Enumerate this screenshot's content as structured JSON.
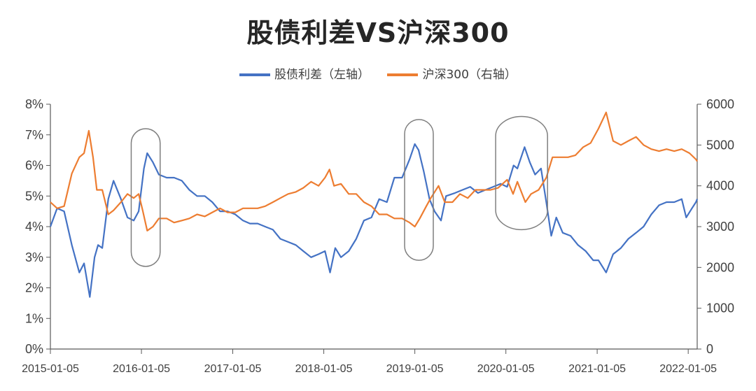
{
  "chart_data": {
    "type": "line",
    "title": "股债利差VS沪深300",
    "left_axis": {
      "ylim": [
        0,
        8
      ],
      "ticks": [
        "0%",
        "1%",
        "2%",
        "3%",
        "4%",
        "5%",
        "6%",
        "7%",
        "8%"
      ]
    },
    "right_axis": {
      "ylim": [
        0,
        6000
      ],
      "ticks": [
        "0",
        "1000",
        "2000",
        "3000",
        "4000",
        "5000",
        "6000"
      ]
    },
    "x_ticks": [
      "2015-01-05",
      "2016-01-05",
      "2017-01-05",
      "2018-01-05",
      "2019-01-05",
      "2020-01-05",
      "2021-01-05",
      "2022-01-05"
    ],
    "x_range": [
      "2015-01-05",
      "2022-02-10"
    ],
    "grid": false,
    "legend_position": "top-center",
    "series": [
      {
        "name": "股债利差（左轴）",
        "axis": "left",
        "color": "#4472C4",
        "points": [
          [
            "2015-01-05",
            4.0
          ],
          [
            "2015-02-01",
            4.6
          ],
          [
            "2015-03-01",
            4.5
          ],
          [
            "2015-04-01",
            3.4
          ],
          [
            "2015-05-01",
            2.5
          ],
          [
            "2015-05-20",
            2.8
          ],
          [
            "2015-06-12",
            1.7
          ],
          [
            "2015-07-01",
            3.0
          ],
          [
            "2015-07-15",
            3.4
          ],
          [
            "2015-08-01",
            3.3
          ],
          [
            "2015-08-25",
            4.9
          ],
          [
            "2015-09-15",
            5.5
          ],
          [
            "2015-10-15",
            4.9
          ],
          [
            "2015-11-10",
            4.3
          ],
          [
            "2015-12-05",
            4.2
          ],
          [
            "2015-12-25",
            4.5
          ],
          [
            "2016-01-15",
            5.9
          ],
          [
            "2016-01-28",
            6.4
          ],
          [
            "2016-02-20",
            6.1
          ],
          [
            "2016-03-15",
            5.7
          ],
          [
            "2016-04-15",
            5.6
          ],
          [
            "2016-05-15",
            5.6
          ],
          [
            "2016-06-15",
            5.5
          ],
          [
            "2016-07-15",
            5.2
          ],
          [
            "2016-08-15",
            5.0
          ],
          [
            "2016-09-15",
            5.0
          ],
          [
            "2016-10-15",
            4.8
          ],
          [
            "2016-11-15",
            4.5
          ],
          [
            "2016-12-15",
            4.5
          ],
          [
            "2017-01-15",
            4.4
          ],
          [
            "2017-02-15",
            4.2
          ],
          [
            "2017-03-15",
            4.1
          ],
          [
            "2017-04-15",
            4.1
          ],
          [
            "2017-05-15",
            4.0
          ],
          [
            "2017-06-15",
            3.9
          ],
          [
            "2017-07-15",
            3.6
          ],
          [
            "2017-08-15",
            3.5
          ],
          [
            "2017-09-15",
            3.4
          ],
          [
            "2017-10-15",
            3.2
          ],
          [
            "2017-11-15",
            3.0
          ],
          [
            "2017-12-15",
            3.1
          ],
          [
            "2018-01-10",
            3.2
          ],
          [
            "2018-01-30",
            2.5
          ],
          [
            "2018-02-20",
            3.3
          ],
          [
            "2018-03-15",
            3.0
          ],
          [
            "2018-04-15",
            3.2
          ],
          [
            "2018-05-15",
            3.6
          ],
          [
            "2018-06-15",
            4.2
          ],
          [
            "2018-07-15",
            4.3
          ],
          [
            "2018-08-15",
            4.9
          ],
          [
            "2018-09-15",
            4.8
          ],
          [
            "2018-10-15",
            5.6
          ],
          [
            "2018-11-15",
            5.6
          ],
          [
            "2018-12-15",
            6.2
          ],
          [
            "2019-01-05",
            6.7
          ],
          [
            "2019-01-20",
            6.5
          ],
          [
            "2019-02-10",
            5.8
          ],
          [
            "2019-03-05",
            4.9
          ],
          [
            "2019-03-25",
            4.5
          ],
          [
            "2019-04-20",
            4.2
          ],
          [
            "2019-05-10",
            5.0
          ],
          [
            "2019-06-15",
            5.1
          ],
          [
            "2019-07-15",
            5.2
          ],
          [
            "2019-08-15",
            5.3
          ],
          [
            "2019-09-15",
            5.1
          ],
          [
            "2019-10-15",
            5.2
          ],
          [
            "2019-11-15",
            5.3
          ],
          [
            "2019-12-15",
            5.4
          ],
          [
            "2020-01-10",
            5.3
          ],
          [
            "2020-02-05",
            6.0
          ],
          [
            "2020-02-20",
            5.9
          ],
          [
            "2020-03-20",
            6.6
          ],
          [
            "2020-04-10",
            6.1
          ],
          [
            "2020-05-01",
            5.7
          ],
          [
            "2020-05-25",
            5.9
          ],
          [
            "2020-06-15",
            4.8
          ],
          [
            "2020-07-05",
            3.7
          ],
          [
            "2020-07-25",
            4.3
          ],
          [
            "2020-08-20",
            3.8
          ],
          [
            "2020-09-20",
            3.7
          ],
          [
            "2020-10-20",
            3.4
          ],
          [
            "2020-11-20",
            3.2
          ],
          [
            "2020-12-20",
            2.9
          ],
          [
            "2021-01-10",
            2.9
          ],
          [
            "2021-02-10",
            2.5
          ],
          [
            "2021-03-10",
            3.1
          ],
          [
            "2021-04-10",
            3.3
          ],
          [
            "2021-05-10",
            3.6
          ],
          [
            "2021-06-10",
            3.8
          ],
          [
            "2021-07-10",
            4.0
          ],
          [
            "2021-08-10",
            4.4
          ],
          [
            "2021-09-10",
            4.7
          ],
          [
            "2021-10-10",
            4.8
          ],
          [
            "2021-11-10",
            4.8
          ],
          [
            "2021-12-10",
            4.9
          ],
          [
            "2021-12-28",
            4.3
          ],
          [
            "2022-01-20",
            4.6
          ],
          [
            "2022-02-05",
            4.8
          ],
          [
            "2022-02-10",
            4.9
          ]
        ]
      },
      {
        "name": "沪深300（右轴）",
        "axis": "right",
        "color": "#ED7D31",
        "points": [
          [
            "2015-01-05",
            3600
          ],
          [
            "2015-02-01",
            3450
          ],
          [
            "2015-03-01",
            3500
          ],
          [
            "2015-04-01",
            4300
          ],
          [
            "2015-05-01",
            4700
          ],
          [
            "2015-05-20",
            4800
          ],
          [
            "2015-06-08",
            5350
          ],
          [
            "2015-06-25",
            4700
          ],
          [
            "2015-07-10",
            3900
          ],
          [
            "2015-08-01",
            3900
          ],
          [
            "2015-08-25",
            3300
          ],
          [
            "2015-09-15",
            3400
          ],
          [
            "2015-10-15",
            3600
          ],
          [
            "2015-11-10",
            3800
          ],
          [
            "2015-12-05",
            3700
          ],
          [
            "2015-12-25",
            3800
          ],
          [
            "2016-01-10",
            3400
          ],
          [
            "2016-01-28",
            2900
          ],
          [
            "2016-02-20",
            3000
          ],
          [
            "2016-03-15",
            3200
          ],
          [
            "2016-04-15",
            3200
          ],
          [
            "2016-05-15",
            3100
          ],
          [
            "2016-06-15",
            3150
          ],
          [
            "2016-07-15",
            3200
          ],
          [
            "2016-08-15",
            3300
          ],
          [
            "2016-09-15",
            3250
          ],
          [
            "2016-10-15",
            3350
          ],
          [
            "2016-11-15",
            3450
          ],
          [
            "2016-12-15",
            3350
          ],
          [
            "2017-01-15",
            3350
          ],
          [
            "2017-02-15",
            3450
          ],
          [
            "2017-03-15",
            3450
          ],
          [
            "2017-04-15",
            3450
          ],
          [
            "2017-05-15",
            3500
          ],
          [
            "2017-06-15",
            3600
          ],
          [
            "2017-07-15",
            3700
          ],
          [
            "2017-08-15",
            3800
          ],
          [
            "2017-09-15",
            3850
          ],
          [
            "2017-10-15",
            3950
          ],
          [
            "2017-11-15",
            4100
          ],
          [
            "2017-12-15",
            4000
          ],
          [
            "2018-01-10",
            4200
          ],
          [
            "2018-01-28",
            4400
          ],
          [
            "2018-02-15",
            4000
          ],
          [
            "2018-03-15",
            4050
          ],
          [
            "2018-04-15",
            3800
          ],
          [
            "2018-05-15",
            3800
          ],
          [
            "2018-06-15",
            3600
          ],
          [
            "2018-07-15",
            3500
          ],
          [
            "2018-08-15",
            3300
          ],
          [
            "2018-09-15",
            3300
          ],
          [
            "2018-10-15",
            3200
          ],
          [
            "2018-11-15",
            3200
          ],
          [
            "2018-12-15",
            3100
          ],
          [
            "2019-01-05",
            3000
          ],
          [
            "2019-01-25",
            3200
          ],
          [
            "2019-02-20",
            3500
          ],
          [
            "2019-03-10",
            3700
          ],
          [
            "2019-04-10",
            4000
          ],
          [
            "2019-05-05",
            3600
          ],
          [
            "2019-06-05",
            3600
          ],
          [
            "2019-07-05",
            3800
          ],
          [
            "2019-08-05",
            3700
          ],
          [
            "2019-09-05",
            3900
          ],
          [
            "2019-10-05",
            3900
          ],
          [
            "2019-11-05",
            3900
          ],
          [
            "2019-12-05",
            3950
          ],
          [
            "2020-01-10",
            4150
          ],
          [
            "2020-02-03",
            3800
          ],
          [
            "2020-02-20",
            4100
          ],
          [
            "2020-03-23",
            3600
          ],
          [
            "2020-04-15",
            3800
          ],
          [
            "2020-05-15",
            3900
          ],
          [
            "2020-06-15",
            4200
          ],
          [
            "2020-07-10",
            4700
          ],
          [
            "2020-08-10",
            4700
          ],
          [
            "2020-09-10",
            4700
          ],
          [
            "2020-10-10",
            4750
          ],
          [
            "2020-11-10",
            4950
          ],
          [
            "2020-12-10",
            5050
          ],
          [
            "2021-01-10",
            5400
          ],
          [
            "2021-02-10",
            5800
          ],
          [
            "2021-03-10",
            5100
          ],
          [
            "2021-04-10",
            5000
          ],
          [
            "2021-05-10",
            5100
          ],
          [
            "2021-06-10",
            5200
          ],
          [
            "2021-07-10",
            5000
          ],
          [
            "2021-08-10",
            4900
          ],
          [
            "2021-09-10",
            4850
          ],
          [
            "2021-10-10",
            4900
          ],
          [
            "2021-11-10",
            4850
          ],
          [
            "2021-12-10",
            4900
          ],
          [
            "2022-01-10",
            4800
          ],
          [
            "2022-02-05",
            4650
          ],
          [
            "2022-02-10",
            4600
          ]
        ]
      }
    ],
    "annotations": [
      {
        "shape": "rounded-rect",
        "from": "2015-11-25",
        "to": "2016-03-20",
        "left_axis_range": [
          2.7,
          7.2
        ]
      },
      {
        "shape": "rounded-rect",
        "from": "2018-11-25",
        "to": "2019-03-20",
        "left_axis_range": [
          2.9,
          7.5
        ]
      },
      {
        "shape": "rounded-rect",
        "from": "2019-11-25",
        "to": "2020-06-20",
        "left_axis_range": [
          3.9,
          7.6
        ]
      }
    ]
  }
}
